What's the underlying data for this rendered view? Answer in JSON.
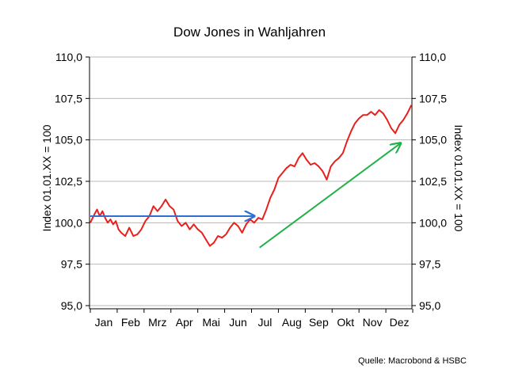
{
  "chart_data": {
    "type": "line",
    "title": "Dow Jones in Wahljahren",
    "ylabel": "Index 01.01.XX = 100",
    "ylabel_right": "Index 01.01.XX = 100",
    "source": "Quelle: Macrobond & HSBC",
    "ylim": [
      95,
      110
    ],
    "yticks": [
      95,
      97.5,
      100,
      102.5,
      105,
      107.5,
      110
    ],
    "ytick_labels": [
      "95,0",
      "97,5",
      "100,0",
      "102,5",
      "105,0",
      "107,5",
      "110,0"
    ],
    "x_months": [
      "Jan",
      "Feb",
      "Mrz",
      "Apr",
      "Mai",
      "Jun",
      "Jul",
      "Aug",
      "Sep",
      "Okt",
      "Nov",
      "Dez"
    ],
    "grid": "horizontal",
    "series": [
      {
        "color": "#e8201c",
        "x": [
          0,
          0.15,
          0.25,
          0.35,
          0.45,
          0.55,
          0.65,
          0.75,
          0.85,
          0.95,
          1.05,
          1.15,
          1.3,
          1.45,
          1.6,
          1.75,
          1.9,
          2.05,
          2.2,
          2.35,
          2.5,
          2.65,
          2.8,
          2.95,
          3.1,
          3.25,
          3.4,
          3.55,
          3.7,
          3.85,
          4.0,
          4.15,
          4.3,
          4.45,
          4.6,
          4.75,
          4.9,
          5.05,
          5.2,
          5.35,
          5.5,
          5.65,
          5.8,
          5.95,
          6.1,
          6.25,
          6.4,
          6.55,
          6.7,
          6.85,
          7.0,
          7.15,
          7.3,
          7.45,
          7.6,
          7.75,
          7.9,
          8.05,
          8.2,
          8.35,
          8.5,
          8.65,
          8.8,
          8.95,
          9.1,
          9.25,
          9.4,
          9.55,
          9.7,
          9.85,
          10.0,
          10.15,
          10.3,
          10.45,
          10.6,
          10.75,
          10.9,
          11.05,
          11.2,
          11.35,
          11.5,
          11.65,
          11.8,
          11.95
        ],
        "values": [
          100.0,
          100.5,
          100.8,
          100.4,
          100.7,
          100.3,
          100.0,
          100.2,
          99.9,
          100.1,
          99.6,
          99.4,
          99.2,
          99.7,
          99.2,
          99.3,
          99.6,
          100.1,
          100.4,
          101.0,
          100.7,
          101.0,
          101.4,
          101.0,
          100.8,
          100.1,
          99.8,
          100.0,
          99.6,
          99.9,
          99.6,
          99.4,
          99.0,
          98.6,
          98.8,
          99.2,
          99.1,
          99.3,
          99.7,
          100.0,
          99.8,
          99.4,
          99.9,
          100.2,
          100.0,
          100.3,
          100.2,
          100.8,
          101.5,
          102.0,
          102.7,
          103.0,
          103.3,
          103.5,
          103.4,
          103.9,
          104.2,
          103.8,
          103.5,
          103.6,
          103.4,
          103.1,
          102.6,
          103.4,
          103.7,
          103.9,
          104.2,
          104.9,
          105.5,
          106.0,
          106.3,
          106.5,
          106.5,
          106.7,
          106.5,
          106.8,
          106.6,
          106.2,
          105.7,
          105.4,
          105.9,
          106.2,
          106.6,
          107.1
        ]
      }
    ],
    "annotations": [
      {
        "type": "arrow",
        "color": "#2f6fd1",
        "from": [
          0,
          100.4
        ],
        "to": [
          6.1,
          100.4
        ]
      },
      {
        "type": "arrow",
        "color": "#21b14b",
        "from": [
          6.3,
          98.5
        ],
        "to": [
          11.55,
          104.8
        ]
      }
    ]
  }
}
